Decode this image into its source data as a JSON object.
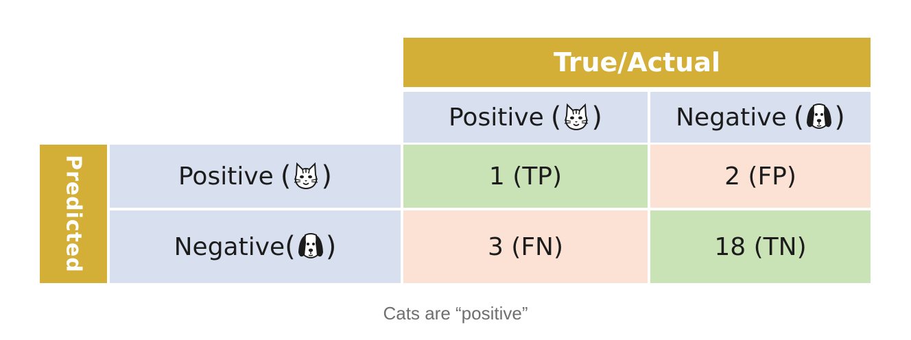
{
  "header": {
    "title": "True/Actual"
  },
  "columns": [
    {
      "label": "Positive",
      "icon": "cat-face-icon"
    },
    {
      "label": "Negative",
      "icon": "dog-face-icon"
    }
  ],
  "side_header": {
    "title": "Predicted"
  },
  "rows": [
    {
      "label": "Positive",
      "icon": "cat-face-icon",
      "cells": [
        "1 (TP)",
        "2 (FP)"
      ]
    },
    {
      "label": "Negative",
      "icon": "dog-face-icon",
      "cells": [
        "3 (FN)",
        "18 (TN)"
      ]
    }
  ],
  "caption": "Cats are “positive”",
  "colors": {
    "header": "#d4af37",
    "label_cell": "#d8e0f0",
    "correct": "#c9e2b6",
    "incorrect": "#fbe2d5"
  }
}
